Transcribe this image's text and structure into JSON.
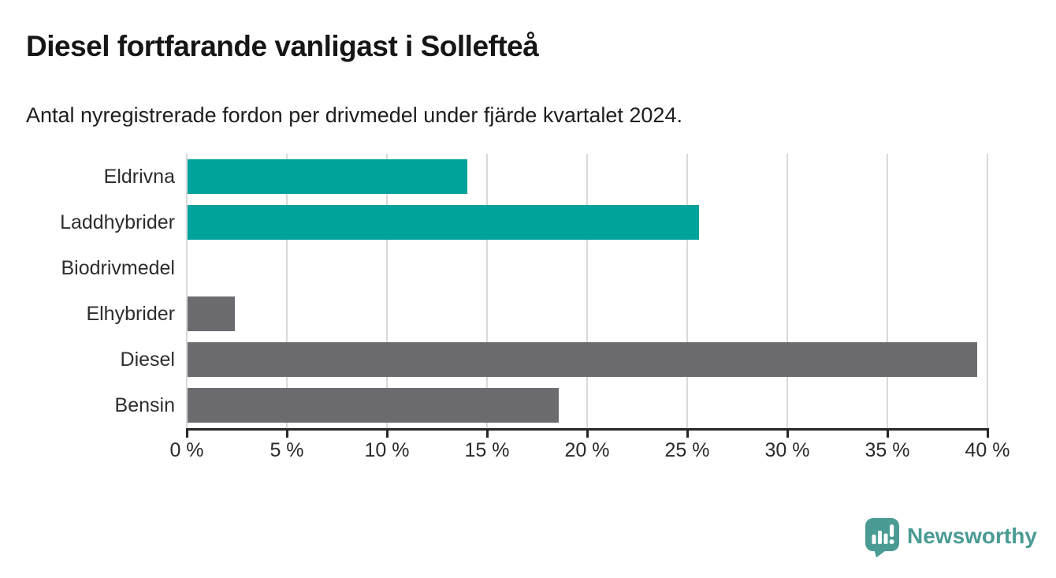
{
  "header": {
    "title": "Diesel fortfarande vanligast i Sollefteå",
    "subtitle": "Antal nyregistrerade fordon per drivmedel under fjärde kvartalet 2024."
  },
  "chart_data": {
    "type": "bar",
    "orientation": "horizontal",
    "title": "Diesel fortfarande vanligast i Sollefteå",
    "subtitle": "Antal nyregistrerade fordon per drivmedel under fjärde kvartalet 2024.",
    "categories": [
      "Eldrivna",
      "Laddhybrider",
      "Biodrivmedel",
      "Elhybrider",
      "Diesel",
      "Bensin"
    ],
    "values": [
      14.0,
      25.6,
      0,
      2.4,
      39.5,
      18.6
    ],
    "unit": "%",
    "xlabel": "",
    "ylabel": "",
    "xlim": [
      0,
      40
    ],
    "x_ticks": [
      0,
      5,
      10,
      15,
      20,
      25,
      30,
      35,
      40
    ],
    "x_tick_labels": [
      "0 %",
      "5 %",
      "10 %",
      "15 %",
      "20 %",
      "25 %",
      "30 %",
      "35 %",
      "40 %"
    ],
    "bar_colors": [
      "#00a39b",
      "#00a39b",
      "#6c6c70",
      "#6c6c70",
      "#6c6c70",
      "#6c6c70"
    ],
    "grid": true,
    "legend": "none"
  },
  "colors": {
    "teal_bar": "#00a39b",
    "gray_bar": "#6c6c70",
    "gridline": "#d9d9d9",
    "axis": "#262626",
    "title_text": "#161616",
    "label_text": "#2d2d2d",
    "logo_teal": "#4a9b94"
  },
  "footer": {
    "logo_text": "Newsworthy"
  }
}
